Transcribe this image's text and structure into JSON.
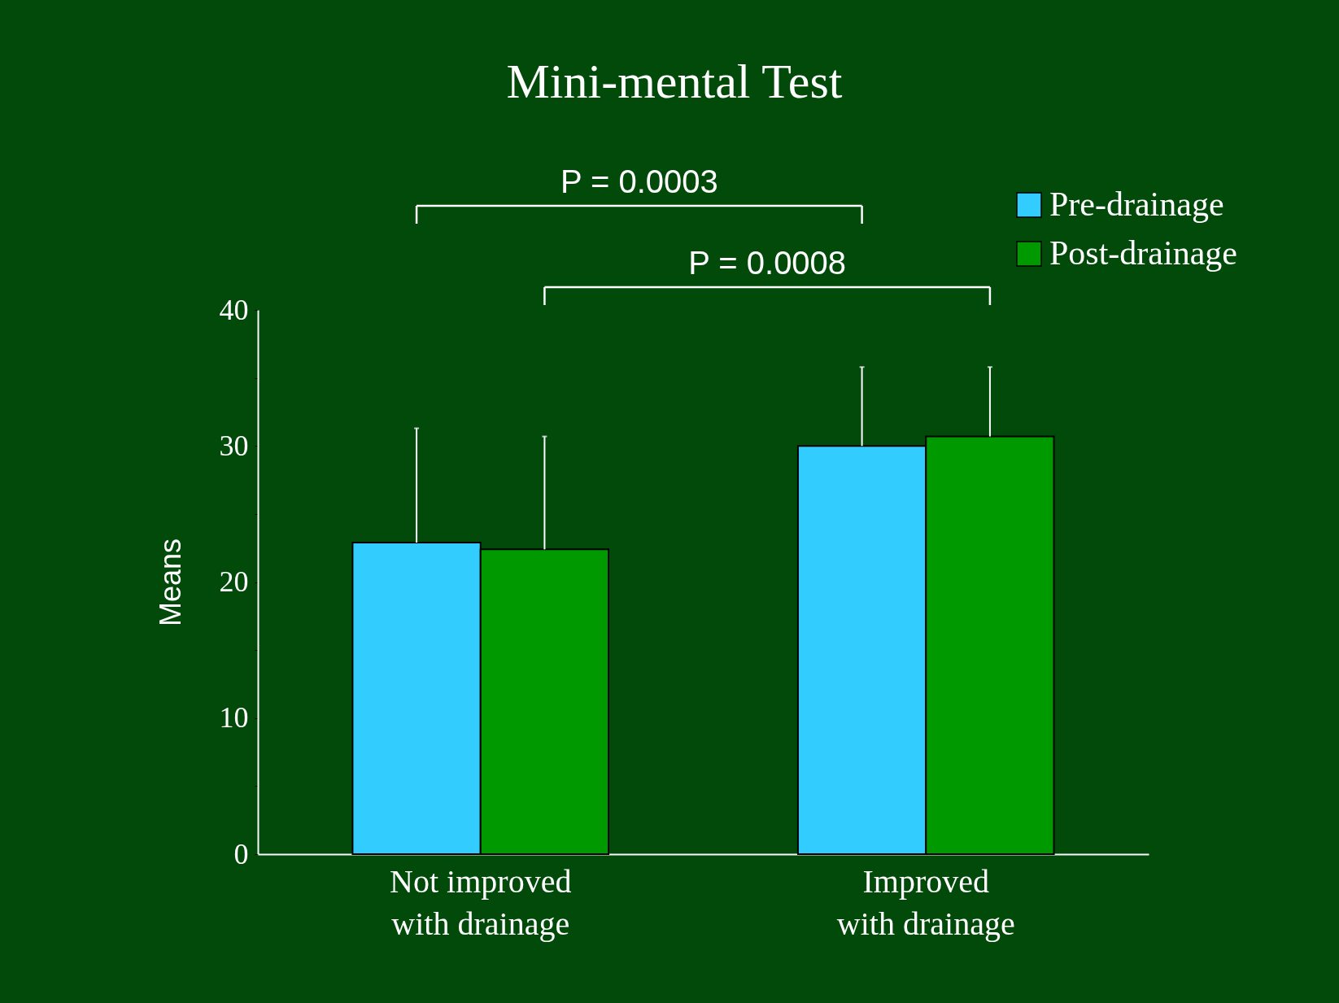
{
  "chart_data": {
    "type": "bar",
    "title": "Mini-mental Test",
    "ylabel": "Means",
    "categories": [
      "Not improved\nwith drainage",
      "Improved\nwith drainage"
    ],
    "series": [
      {
        "name": "Pre-drainage",
        "color": "#33ccff",
        "values": [
          22.9,
          30.0
        ],
        "errors": [
          [
            22.9,
            31.3
          ],
          [
            30.0,
            35.8
          ]
        ]
      },
      {
        "name": "Post-drainage",
        "color": "#009900",
        "values": [
          22.4,
          30.7
        ],
        "errors": [
          [
            22.4,
            30.7
          ],
          [
            30.7,
            35.8
          ]
        ]
      }
    ],
    "ylim": [
      0,
      40
    ],
    "yticks": [
      0,
      {
        "value": 5,
        "label": null
      },
      10,
      {
        "value": 15,
        "label": null
      },
      20,
      {
        "value": 25,
        "label": null
      },
      30,
      {
        "value": 35,
        "label": null
      },
      40
    ],
    "annotations": [
      "P = 0.0003",
      "P = 0.0008"
    ],
    "grid": false,
    "legend": "top right"
  }
}
